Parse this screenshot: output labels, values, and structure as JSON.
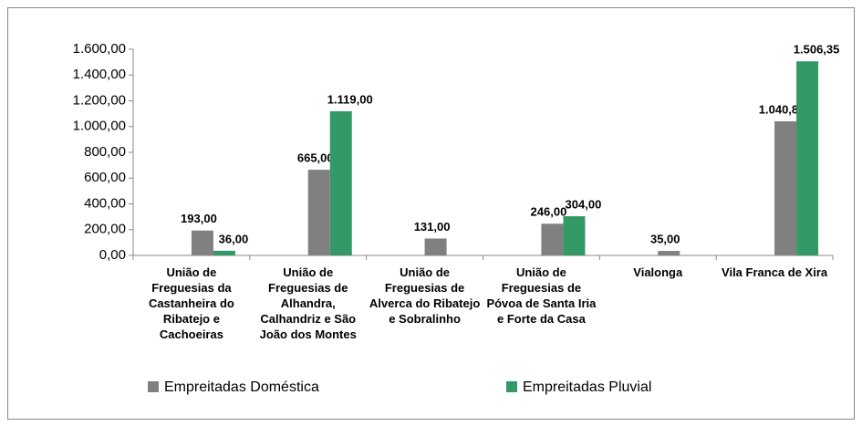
{
  "chart_data": {
    "type": "bar",
    "categories": [
      "União de Freguesias da Castanheira do Ribatejo e Cachoeiras",
      "União de Freguesias de Alhandra, Calhandriz e São João dos Montes",
      "União de Freguesias de Alverca do Ribatejo e Sobralinho",
      "União de Freguesias de Póvoa de Santa Iria e Forte da Casa",
      "Vialonga",
      "Vila Franca de Xira"
    ],
    "series": [
      {
        "name": "Empreitadas Doméstica",
        "color": "#808080",
        "values": [
          193,
          665,
          131,
          246,
          35,
          1040.85
        ],
        "value_labels": [
          "193,00",
          "665,00",
          "131,00",
          "246,00",
          "35,00",
          "1.040,85"
        ]
      },
      {
        "name": "Empreitadas Pluvial",
        "color": "#339966",
        "values": [
          36,
          1119,
          null,
          304,
          null,
          1506.35
        ],
        "value_labels": [
          "36,00",
          "1.119,00",
          null,
          "304,00",
          null,
          "1.506,35"
        ]
      }
    ],
    "ylim": [
      0,
      1600
    ],
    "yticks": [
      {
        "value": 0,
        "label": "0,00"
      },
      {
        "value": 200,
        "label": "200,00"
      },
      {
        "value": 400,
        "label": "400,00"
      },
      {
        "value": 600,
        "label": "600,00"
      },
      {
        "value": 800,
        "label": "800,00"
      },
      {
        "value": 1000,
        "label": "1.000,00"
      },
      {
        "value": 1200,
        "label": "1.200,00"
      },
      {
        "value": 1400,
        "label": "1.400,00"
      },
      {
        "value": 1600,
        "label": "1.600,00"
      }
    ],
    "legend": "bottom"
  }
}
